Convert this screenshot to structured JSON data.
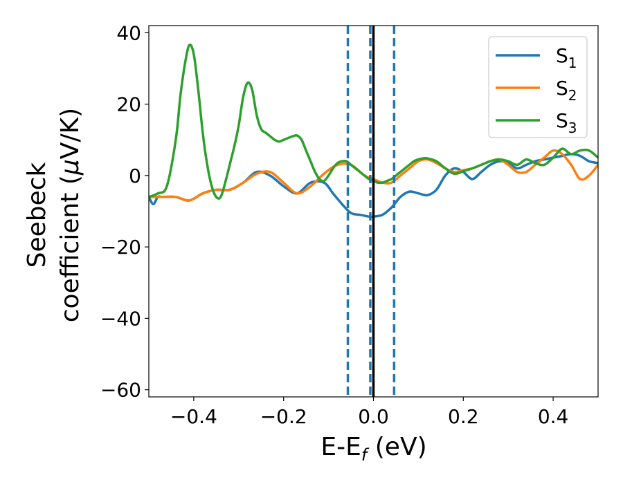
{
  "chart_data": {
    "type": "line",
    "xlabel": {
      "main": "E-E",
      "sub": "f",
      "rest": " (eV)"
    },
    "ylabel": {
      "line1": "Seebeck",
      "line2_pre": "coefficient  (",
      "line2_mu": "μ",
      "line2_post": "V/K)"
    },
    "xlim": [
      -0.5,
      0.5
    ],
    "ylim": [
      -62,
      42
    ],
    "x_ticks": [
      -0.4,
      -0.2,
      0.0,
      0.2,
      0.4
    ],
    "x_tick_labels": [
      "−0.4",
      "−0.2",
      "0.0",
      "0.2",
      "0.4"
    ],
    "y_ticks": [
      40,
      20,
      0,
      -20,
      -40,
      -60
    ],
    "y_tick_labels": [
      "40",
      "20",
      "0",
      "−20",
      "−40",
      "−60"
    ],
    "legend_position": "top-right",
    "vlines": [
      {
        "x": -0.057,
        "style": "dashed",
        "color": "#1f77b4"
      },
      {
        "x": -0.007,
        "style": "dashed",
        "color": "#1f77b4"
      },
      {
        "x": 0.046,
        "style": "dashed",
        "color": "#1f77b4"
      },
      {
        "x": 0.0,
        "style": "solid",
        "color": "#000000"
      }
    ],
    "series": [
      {
        "name": "S",
        "sub": "1",
        "color": "#1f77b4",
        "x": [
          -0.5,
          -0.49,
          -0.48,
          -0.47,
          -0.44,
          -0.41,
          -0.38,
          -0.35,
          -0.32,
          -0.29,
          -0.26,
          -0.23,
          -0.2,
          -0.17,
          -0.14,
          -0.11,
          -0.09,
          -0.07,
          -0.05,
          -0.03,
          -0.01,
          0.0,
          0.02,
          0.04,
          0.06,
          0.08,
          0.1,
          0.12,
          0.14,
          0.16,
          0.18,
          0.2,
          0.22,
          0.24,
          0.26,
          0.28,
          0.3,
          0.32,
          0.34,
          0.36,
          0.38,
          0.4,
          0.42,
          0.44,
          0.46,
          0.48,
          0.5
        ],
        "y": [
          -6,
          -8,
          -6,
          -6,
          -6,
          -7,
          -5,
          -4,
          -4,
          -2,
          1,
          0,
          -3,
          -5,
          -2,
          -2,
          -5,
          -8,
          -10.5,
          -11,
          -11.5,
          -11.5,
          -11,
          -9,
          -6,
          -4.5,
          -5,
          -5.5,
          -4,
          0,
          2,
          1,
          -1,
          1,
          3,
          4,
          3.5,
          2,
          3,
          4,
          4.5,
          5,
          5.5,
          6,
          5.5,
          4,
          3.5
        ]
      },
      {
        "name": "S",
        "sub": "2",
        "color": "#ff7f0e",
        "x": [
          -0.5,
          -0.47,
          -0.44,
          -0.41,
          -0.38,
          -0.35,
          -0.32,
          -0.29,
          -0.26,
          -0.23,
          -0.2,
          -0.17,
          -0.14,
          -0.11,
          -0.08,
          -0.05,
          -0.02,
          0.0,
          0.02,
          0.04,
          0.06,
          0.08,
          0.1,
          0.12,
          0.14,
          0.16,
          0.18,
          0.2,
          0.22,
          0.24,
          0.26,
          0.28,
          0.3,
          0.32,
          0.34,
          0.36,
          0.38,
          0.4,
          0.42,
          0.44,
          0.46,
          0.48,
          0.5
        ],
        "y": [
          -6,
          -6,
          -6,
          -7,
          -5,
          -4,
          -4,
          -2,
          0.5,
          1,
          -2,
          -5,
          -3,
          0.5,
          3,
          3,
          0,
          -1,
          -2,
          -2,
          0,
          2,
          4,
          4.5,
          3.5,
          2,
          1,
          1.5,
          2,
          3,
          4,
          4.5,
          3,
          1,
          1,
          3,
          5,
          7,
          6,
          3,
          -1,
          0,
          3
        ]
      },
      {
        "name": "S",
        "sub": "3",
        "color": "#2ca02c",
        "x": [
          -0.5,
          -0.48,
          -0.46,
          -0.44,
          -0.43,
          -0.42,
          -0.41,
          -0.4,
          -0.39,
          -0.38,
          -0.37,
          -0.36,
          -0.35,
          -0.34,
          -0.33,
          -0.32,
          -0.31,
          -0.3,
          -0.29,
          -0.28,
          -0.27,
          -0.26,
          -0.25,
          -0.24,
          -0.23,
          -0.22,
          -0.21,
          -0.2,
          -0.19,
          -0.18,
          -0.17,
          -0.16,
          -0.15,
          -0.14,
          -0.13,
          -0.12,
          -0.11,
          -0.1,
          -0.09,
          -0.08,
          -0.07,
          -0.06,
          -0.05,
          -0.04,
          -0.03,
          -0.02,
          -0.01,
          0.0,
          0.01,
          0.02,
          0.03,
          0.04,
          0.05,
          0.06,
          0.07,
          0.08,
          0.09,
          0.1,
          0.11,
          0.12,
          0.14,
          0.16,
          0.18,
          0.2,
          0.22,
          0.24,
          0.26,
          0.28,
          0.3,
          0.32,
          0.34,
          0.36,
          0.38,
          0.4,
          0.42,
          0.44,
          0.46,
          0.48,
          0.5
        ],
        "y": [
          -6,
          -5,
          -3,
          10,
          22,
          31,
          36.5,
          34,
          24,
          12,
          3,
          -3,
          -6,
          -6,
          -2,
          3,
          8,
          14,
          22,
          26,
          24,
          17,
          13,
          12,
          11,
          10,
          9.5,
          10,
          10.5,
          11,
          11.2,
          10,
          7,
          4,
          1,
          -1,
          -1.5,
          0,
          2,
          3.5,
          4,
          4,
          3,
          2,
          1,
          0,
          -1,
          -1.5,
          -2,
          -2,
          -1.5,
          -1,
          0,
          1,
          2,
          3,
          4,
          4.5,
          4.8,
          4.8,
          4,
          2,
          0.5,
          1.2,
          2,
          3,
          4,
          4.5,
          4,
          3,
          4.5,
          3.5,
          3,
          5,
          7.5,
          6,
          7,
          7,
          5
        ]
      }
    ]
  }
}
